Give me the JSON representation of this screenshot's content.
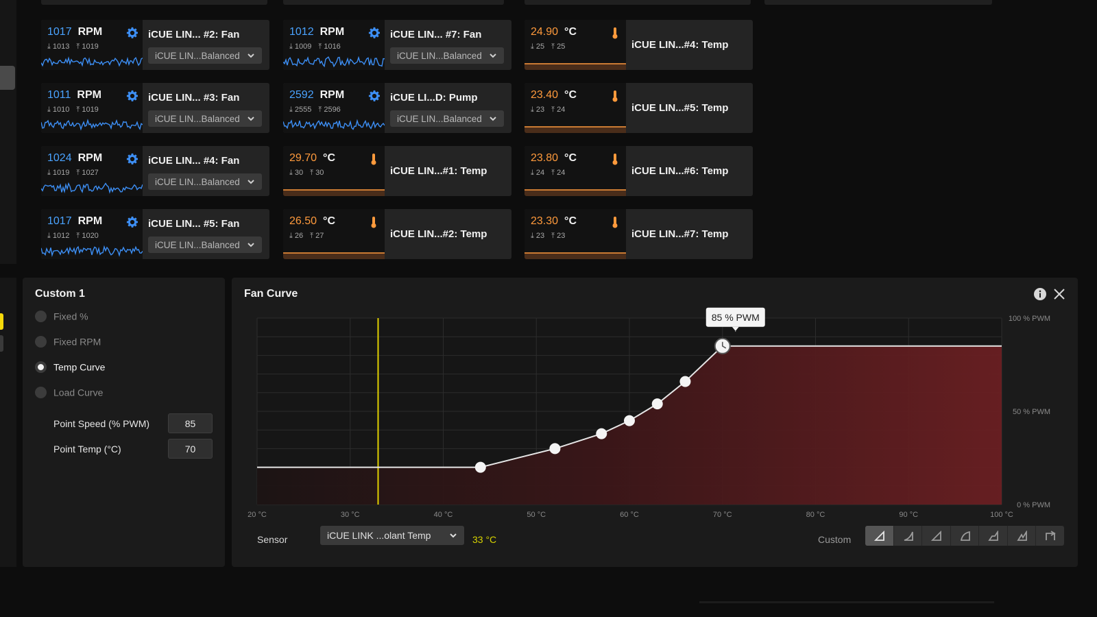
{
  "fan_tiles": [
    {
      "rpm": "1017",
      "unit": "RPM",
      "min": "1013",
      "max": "1019",
      "name": "iCUE LIN... #2: Fan",
      "preset": "iCUE LIN...Balanced"
    },
    {
      "rpm": "1011",
      "unit": "RPM",
      "min": "1010",
      "max": "1019",
      "name": "iCUE LIN... #3: Fan",
      "preset": "iCUE LIN...Balanced"
    },
    {
      "rpm": "1024",
      "unit": "RPM",
      "min": "1019",
      "max": "1027",
      "name": "iCUE LIN... #4: Fan",
      "preset": "iCUE LIN...Balanced"
    },
    {
      "rpm": "1017",
      "unit": "RPM",
      "min": "1012",
      "max": "1020",
      "name": "iCUE LIN... #5: Fan",
      "preset": "iCUE LIN...Balanced"
    },
    {
      "rpm": "1012",
      "unit": "RPM",
      "min": "1009",
      "max": "1016",
      "name": "iCUE LIN... #7: Fan",
      "preset": "iCUE LIN...Balanced"
    },
    {
      "rpm": "2592",
      "unit": "RPM",
      "min": "2555",
      "max": "2596",
      "name": "iCUE LI...D: Pump",
      "preset": "iCUE LIN...Balanced"
    }
  ],
  "temp_tiles": [
    {
      "value": "29.70",
      "unit": "°C",
      "min": "30",
      "max": "30",
      "name": "iCUE LIN...#1: Temp"
    },
    {
      "value": "26.50",
      "unit": "°C",
      "min": "26",
      "max": "27",
      "name": "iCUE LIN...#2: Temp"
    },
    {
      "value": "24.90",
      "unit": "°C",
      "min": "25",
      "max": "25",
      "name": "iCUE LIN...#4: Temp"
    },
    {
      "value": "23.40",
      "unit": "°C",
      "min": "23",
      "max": "24",
      "name": "iCUE LIN...#5: Temp"
    },
    {
      "value": "23.80",
      "unit": "°C",
      "min": "24",
      "max": "24",
      "name": "iCUE LIN...#6: Temp"
    },
    {
      "value": "23.30",
      "unit": "°C",
      "min": "23",
      "max": "23",
      "name": "iCUE LIN...#7: Temp"
    }
  ],
  "profile": {
    "title": "Custom 1",
    "modes": [
      "Fixed %",
      "Fixed RPM",
      "Temp Curve",
      "Load Curve"
    ],
    "active_mode": "Temp Curve",
    "point_speed_label": "Point Speed (% PWM)",
    "point_speed_value": "85",
    "point_temp_label": "Point Temp (°C)",
    "point_temp_value": "70"
  },
  "fan_curve": {
    "title": "Fan Curve",
    "tooltip": "85 % PWM",
    "sensor_label": "Sensor",
    "sensor_value": "iCUE LINK ...olant Temp",
    "sensor_reading": "33 °C",
    "custom_label": "Custom"
  },
  "chart_data": {
    "type": "line",
    "x_tick_labels": [
      "20 °C",
      "30 °C",
      "40 °C",
      "50 °C",
      "60 °C",
      "70 °C",
      "80 °C",
      "90 °C",
      "100 °C"
    ],
    "y_tick_labels": [
      "100 % PWM",
      "50 % PWM",
      "0 % PWM"
    ],
    "xlim": [
      20,
      100
    ],
    "ylim": [
      0,
      100
    ],
    "current_temp": 33,
    "points": [
      {
        "x": 44,
        "y": 20
      },
      {
        "x": 52,
        "y": 30
      },
      {
        "x": 57,
        "y": 38
      },
      {
        "x": 60,
        "y": 45
      },
      {
        "x": 63,
        "y": 54
      },
      {
        "x": 66,
        "y": 66
      },
      {
        "x": 70,
        "y": 85
      }
    ],
    "selected_point": 6,
    "colors": {
      "line": "#e6e6e6",
      "fill_dark": "#1c1414",
      "fill_red": "#6a1f22",
      "marker": "#f0e000"
    }
  }
}
